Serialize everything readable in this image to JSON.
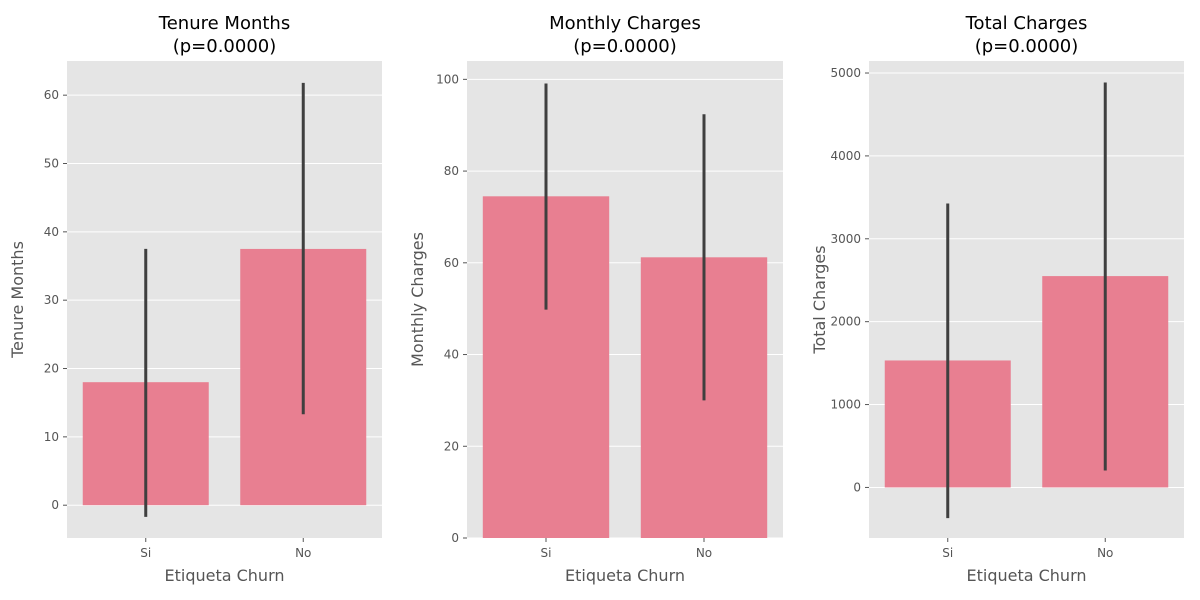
{
  "colors": {
    "panel_bg": "#e5e5e5",
    "grid": "#ffffff",
    "bar": "#e87f91",
    "errorbar": "#3f3f3f",
    "tick": "#555555"
  },
  "chart_data": [
    {
      "type": "bar",
      "title": "Tenure Months",
      "subtitle": "(p=0.0000)",
      "xlabel": "Etiqueta Churn",
      "ylabel": "Tenure Months",
      "categories": [
        "Si",
        "No"
      ],
      "values": [
        18,
        37.5
      ],
      "errors": [
        [
          -1.7,
          37.5
        ],
        [
          13.3,
          61.8
        ]
      ],
      "ylim": [
        -4.8,
        65
      ],
      "yticks": [
        0,
        10,
        20,
        30,
        40,
        50,
        60
      ],
      "grid": true,
      "legend": "none"
    },
    {
      "type": "bar",
      "title": "Monthly Charges",
      "subtitle": "(p=0.0000)",
      "xlabel": "Etiqueta Churn",
      "ylabel": "Monthly Charges",
      "categories": [
        "Si",
        "No"
      ],
      "values": [
        74.5,
        61.2
      ],
      "errors": [
        [
          49.8,
          99.1
        ],
        [
          30.0,
          92.4
        ]
      ],
      "ylim": [
        0,
        104
      ],
      "yticks": [
        0,
        20,
        40,
        60,
        80,
        100
      ],
      "grid": true,
      "legend": "none"
    },
    {
      "type": "bar",
      "title": "Total Charges",
      "subtitle": "(p=0.0000)",
      "xlabel": "Etiqueta Churn",
      "ylabel": "Total Charges",
      "categories": [
        "Si",
        "No"
      ],
      "values": [
        1532,
        2550
      ],
      "errors": [
        [
          -370,
          3425
        ],
        [
          205,
          4885
        ]
      ],
      "ylim": [
        -610,
        5145
      ],
      "yticks": [
        0,
        1000,
        2000,
        3000,
        4000,
        5000
      ],
      "grid": true,
      "legend": "none"
    }
  ]
}
